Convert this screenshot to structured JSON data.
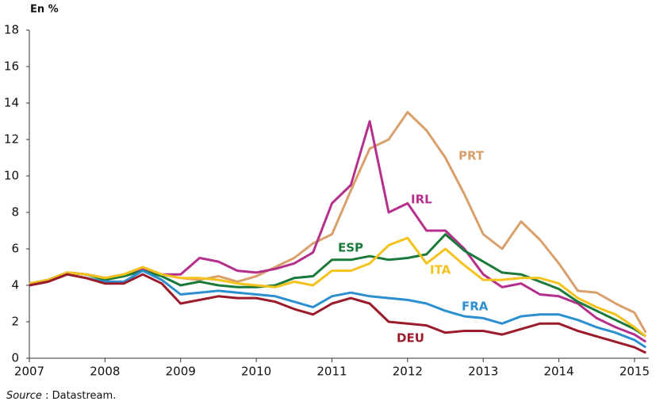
{
  "chart_data": {
    "type": "line",
    "y_label": "En %",
    "source": {
      "label": "Source",
      "text": ": Datastream."
    },
    "x": [
      2007,
      2007.25,
      2007.5,
      2007.75,
      2008,
      2008.25,
      2008.5,
      2008.75,
      2009,
      2009.25,
      2009.5,
      2009.75,
      2010,
      2010.25,
      2010.5,
      2010.75,
      2011,
      2011.25,
      2011.5,
      2011.75,
      2012,
      2012.25,
      2012.5,
      2012.75,
      2013,
      2013.25,
      2013.5,
      2013.75,
      2014,
      2014.25,
      2014.5,
      2014.75,
      2015,
      2015.15
    ],
    "series": [
      {
        "name": "PRT",
        "color": "#d9a06b",
        "values": [
          4.1,
          4.3,
          4.7,
          4.6,
          4.4,
          4.6,
          4.9,
          4.6,
          4.4,
          4.3,
          4.5,
          4.2,
          4.5,
          5.0,
          5.5,
          6.3,
          6.8,
          9.2,
          11.5,
          12.0,
          13.5,
          12.5,
          11.0,
          9.0,
          6.8,
          6.0,
          7.5,
          6.5,
          5.2,
          3.7,
          3.6,
          3.0,
          2.5,
          1.4
        ]
      },
      {
        "name": "IRL",
        "color": "#b5308c",
        "values": [
          4.0,
          4.3,
          4.7,
          4.6,
          4.4,
          4.6,
          4.9,
          4.6,
          4.6,
          5.5,
          5.3,
          4.8,
          4.7,
          4.9,
          5.2,
          5.8,
          8.5,
          9.5,
          13.0,
          8.0,
          8.5,
          7.0,
          7.0,
          6.0,
          4.6,
          3.9,
          4.1,
          3.5,
          3.4,
          3.0,
          2.2,
          1.7,
          1.3,
          0.9
        ]
      },
      {
        "name": "ESP",
        "color": "#1a7a3a",
        "values": [
          4.1,
          4.3,
          4.7,
          4.6,
          4.3,
          4.5,
          4.8,
          4.5,
          4.0,
          4.2,
          4.0,
          3.9,
          3.9,
          4.0,
          4.4,
          4.5,
          5.4,
          5.4,
          5.6,
          5.4,
          5.5,
          5.7,
          6.8,
          5.9,
          5.3,
          4.7,
          4.6,
          4.2,
          3.8,
          3.1,
          2.6,
          2.1,
          1.6,
          1.2
        ]
      },
      {
        "name": "ITA",
        "color": "#f5c21b",
        "values": [
          4.1,
          4.3,
          4.7,
          4.6,
          4.4,
          4.6,
          5.0,
          4.6,
          4.4,
          4.4,
          4.3,
          4.1,
          4.0,
          3.9,
          4.2,
          4.0,
          4.8,
          4.8,
          5.2,
          6.2,
          6.6,
          5.2,
          6.0,
          5.1,
          4.3,
          4.3,
          4.4,
          4.4,
          4.1,
          3.3,
          2.8,
          2.4,
          1.7,
          1.2
        ]
      },
      {
        "name": "FRA",
        "color": "#2c8fd0",
        "values": [
          4.0,
          4.2,
          4.6,
          4.4,
          4.2,
          4.2,
          4.8,
          4.3,
          3.5,
          3.6,
          3.7,
          3.6,
          3.5,
          3.4,
          3.1,
          2.8,
          3.4,
          3.6,
          3.4,
          3.3,
          3.2,
          3.0,
          2.6,
          2.3,
          2.2,
          1.9,
          2.3,
          2.4,
          2.4,
          2.1,
          1.7,
          1.4,
          1.0,
          0.6
        ]
      },
      {
        "name": "DEU",
        "color": "#9b1b2a",
        "values": [
          4.0,
          4.2,
          4.6,
          4.4,
          4.1,
          4.1,
          4.6,
          4.1,
          3.0,
          3.2,
          3.4,
          3.3,
          3.3,
          3.1,
          2.7,
          2.4,
          3.0,
          3.3,
          3.0,
          2.0,
          1.9,
          1.8,
          1.4,
          1.5,
          1.5,
          1.3,
          1.6,
          1.9,
          1.9,
          1.5,
          1.2,
          0.9,
          0.6,
          0.3
        ]
      }
    ],
    "xlim": [
      2007,
      2015.2
    ],
    "xticks": [
      2007,
      2008,
      2009,
      2010,
      2011,
      2012,
      2013,
      2014,
      2015
    ],
    "ylim": [
      0,
      18
    ],
    "yticks": [
      0,
      2,
      4,
      6,
      8,
      10,
      12,
      14,
      16,
      18
    ]
  }
}
